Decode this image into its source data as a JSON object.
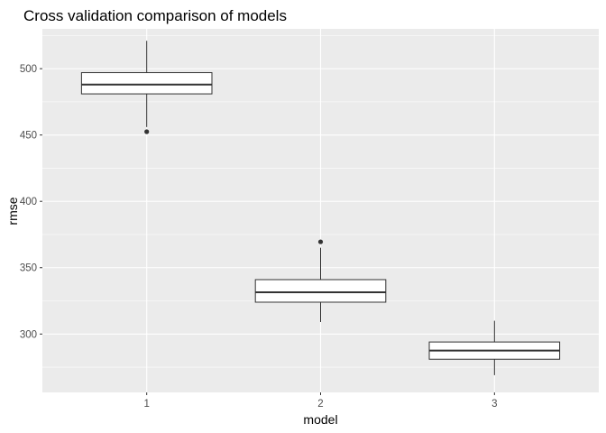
{
  "chart_data": {
    "type": "boxplot",
    "title": "Cross validation comparison of models",
    "xlabel": "model",
    "ylabel": "rmse",
    "categories": [
      "1",
      "2",
      "3"
    ],
    "ylim": [
      256,
      530
    ],
    "y_ticks": [
      300,
      350,
      400,
      450,
      500
    ],
    "grid": true,
    "legend": "none",
    "boxes": [
      {
        "category": "1",
        "whisker_low": 456,
        "q1": 481,
        "median": 488,
        "q3": 497,
        "whisker_high": 521,
        "outliers": [
          452.5
        ]
      },
      {
        "category": "2",
        "whisker_low": 309,
        "q1": 324,
        "median": 331.5,
        "q3": 341,
        "whisker_high": 365,
        "outliers": [
          369.5
        ]
      },
      {
        "category": "3",
        "whisker_low": 269,
        "q1": 281,
        "median": 287.5,
        "q3": 294,
        "whisker_high": 310,
        "outliers": []
      }
    ],
    "colors": {
      "panel": "#ebebeb",
      "grid_major": "#ffffff",
      "box_fill": "#ffffff",
      "box_stroke": "#333333",
      "outlier": "#333333"
    }
  }
}
